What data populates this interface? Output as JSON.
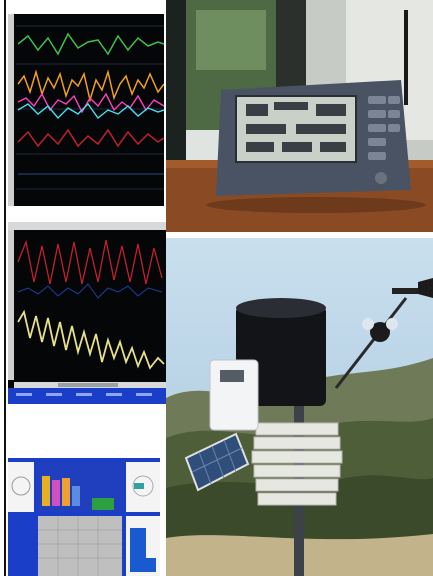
{
  "collage": {
    "panels": [
      {
        "id": "chart-top-left",
        "kind": "multi-trace plot screenshot"
      },
      {
        "id": "console-photo",
        "kind": "photo of weather console"
      },
      {
        "id": "chart-mid-left",
        "kind": "oscillating trace plot screenshot"
      },
      {
        "id": "station-photo",
        "kind": "photo of outdoor weather station"
      },
      {
        "id": "dashboard-bottom-left",
        "kind": "dashboard screenshot"
      }
    ],
    "console": {
      "screen_text": [],
      "brand_text": ""
    },
    "station": {
      "watermark": ""
    }
  },
  "colors": {
    "trace_green": "#3fc04a",
    "trace_orange": "#f0a020",
    "trace_magenta": "#ff3fbf",
    "trace_cyan": "#48e0f0",
    "trace_red": "#c02030",
    "trace_yellow": "#e6e08a",
    "dash_blue": "#1a3ec8"
  }
}
